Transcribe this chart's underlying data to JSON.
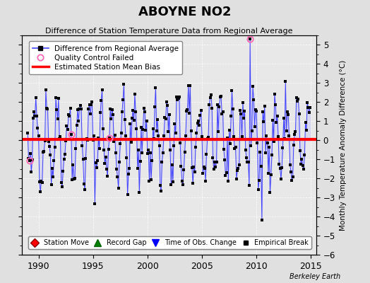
{
  "title": "ABOYNE NO2",
  "subtitle": "Difference of Station Temperature Data from Regional Average",
  "ylabel_right": "Monthly Temperature Anomaly Difference (°C)",
  "xlim": [
    1988.5,
    2015.5
  ],
  "ylim": [
    -6.0,
    5.5
  ],
  "yticks": [
    -6,
    -5,
    -4,
    -3,
    -2,
    -1,
    0,
    1,
    2,
    3,
    4,
    5
  ],
  "xticks": [
    1990,
    1995,
    2000,
    2005,
    2010,
    2015
  ],
  "bias_value": 0.05,
  "background_color": "#e0e0e0",
  "plot_bg_color": "#e8e8e8",
  "line_color": "#4444ff",
  "line_fill_color": "#aaaaff",
  "bias_color": "#ff0000",
  "marker_color": "#000000",
  "qc_failed_color": "#ff69b4",
  "watermark": "Berkeley Earth",
  "seed": 42,
  "legend1_labels": [
    "Difference from Regional Average",
    "Quality Control Failed",
    "Estimated Station Mean Bias"
  ],
  "legend2_labels": [
    "Station Move",
    "Record Gap",
    "Time of Obs. Change",
    "Empirical Break"
  ]
}
